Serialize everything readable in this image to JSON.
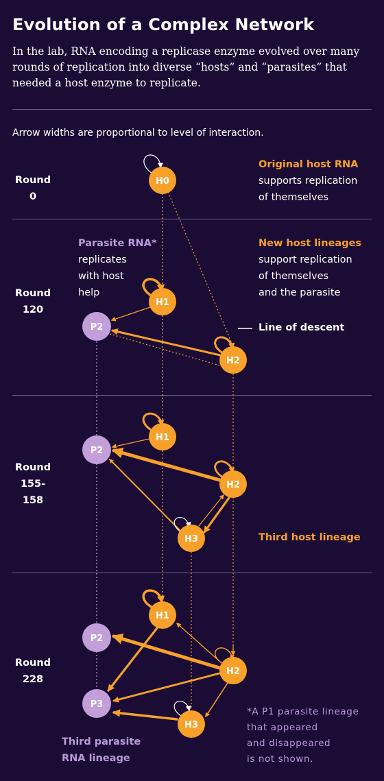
{
  "header": {
    "title": "Evolution of a Complex Network",
    "intro": "In the lab, RNA encoding a replicase enzyme evolved over many rounds of replication into diverse “hosts” and “parasites” that needed a host enzyme to replicate."
  },
  "note": "Arrow widths are proportional to level of interaction.",
  "rounds": [
    {
      "line1": "Round",
      "line2": "0"
    },
    {
      "line1": "Round",
      "line2": "120"
    },
    {
      "line1": "Round",
      "line2": "155-",
      "line3": "158"
    },
    {
      "line1": "Round",
      "line2": "228"
    }
  ],
  "annotations": {
    "original_host": {
      "title": "Original host RNA",
      "line1": "supports replication",
      "line2": "of themselves"
    },
    "parasite": {
      "title": "Parasite RNA*",
      "line1": "replicates",
      "line2": "with host",
      "line3": "help"
    },
    "new_host": {
      "title": "New host lineages",
      "line1": "support replication",
      "line2": "of themselves",
      "line3": "and the parasite"
    },
    "line_of_descent": "Line of  descent",
    "third_host": "Third host lineage",
    "third_parasite": {
      "line1": "Third parasite",
      "line2": "RNA  lineage"
    }
  },
  "footnote": {
    "line1": "*A P1 parasite lineage",
    "line2": "that appeared",
    "line3": "and disappeared",
    "line4": "is not shown."
  },
  "colors": {
    "background": "#1b0c35",
    "host": "#f7a12b",
    "parasite": "#c29fd8",
    "rule": "#6f6585"
  },
  "nodes": {
    "H0": "H0",
    "H1": "H1",
    "H2": "H2",
    "H3": "H3",
    "P2": "P2",
    "P3": "P3"
  }
}
